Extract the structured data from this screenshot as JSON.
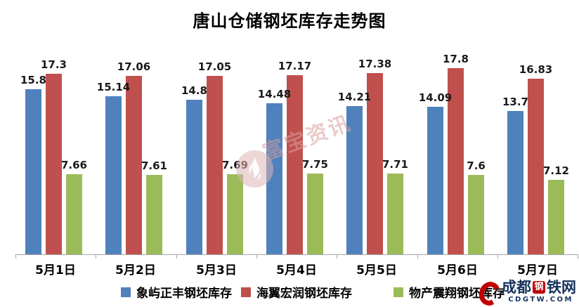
{
  "title": "唐山仓储钢坯库存走势图",
  "chart_data": {
    "type": "bar",
    "title": "唐山仓储钢坯库存走势图",
    "categories": [
      "5月1日",
      "5月2日",
      "5月3日",
      "5月4日",
      "5月5日",
      "5月6日",
      "5月7日"
    ],
    "series": [
      {
        "name": "象屿正丰钢坯库存",
        "color": "#4F81BD",
        "values": [
          15.8,
          15.14,
          14.8,
          14.48,
          14.21,
          14.09,
          13.7
        ]
      },
      {
        "name": "海翼宏润钢坯库存",
        "color": "#C0504D",
        "values": [
          17.3,
          17.06,
          17.05,
          17.17,
          17.38,
          17.8,
          16.83
        ]
      },
      {
        "name": "物产震翔钢坯库存",
        "color": "#9BBB59",
        "values": [
          7.66,
          7.61,
          7.69,
          7.75,
          7.71,
          7.6,
          7.12
        ]
      }
    ],
    "xlabel": "",
    "ylabel": "",
    "ylim": [
      0,
      18.6
    ],
    "grid": false,
    "data_labels": true,
    "legend_position": "bottom",
    "axis_color": "#A6A6A6"
  },
  "watermark": {
    "text": "富宝资讯"
  },
  "logo": {
    "text_prefix": "成都",
    "text_boxed": "钢",
    "text_suffix": "铁网",
    "domain": "CDGTW.COM",
    "red": "#C00000",
    "navy": "#16325C"
  }
}
